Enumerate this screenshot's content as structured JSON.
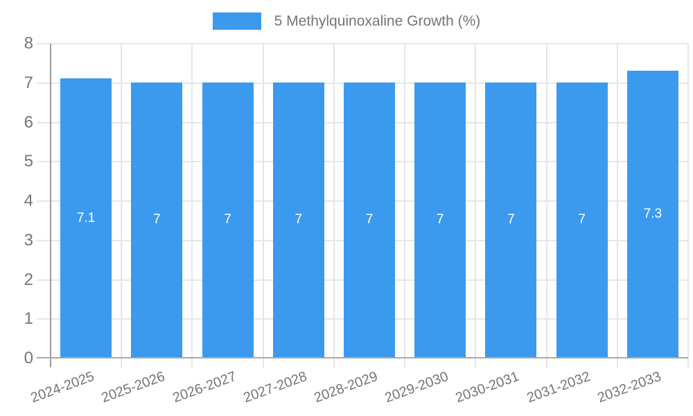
{
  "chart_data": {
    "type": "bar",
    "title": "",
    "legend": "5 Methylquinoxaline Growth (%)",
    "legend_position": "top",
    "categories": [
      "2024-2025",
      "2025-2026",
      "2026-2027",
      "2027-2028",
      "2028-2029",
      "2029-2030",
      "2030-2031",
      "2031-2032",
      "2032-2033"
    ],
    "values": [
      7.1,
      7,
      7,
      7,
      7,
      7,
      7,
      7,
      7.3
    ],
    "bar_labels": [
      "7.1",
      "7",
      "7",
      "7",
      "7",
      "7",
      "7",
      "7",
      "7.3"
    ],
    "xlabel": "",
    "ylabel": "",
    "ylim": [
      0,
      8
    ],
    "yticks": [
      "0",
      "1",
      "2",
      "3",
      "4",
      "5",
      "6",
      "7",
      "8"
    ],
    "grid": true,
    "x_tick_rotation_deg": -20,
    "colors": {
      "bar": "#3b9aee",
      "grid": "#e6e6e6",
      "axis": "#a8a8a8",
      "tick_label": "#757575",
      "bar_label": "#ffffff",
      "background": "#ffffff"
    }
  }
}
